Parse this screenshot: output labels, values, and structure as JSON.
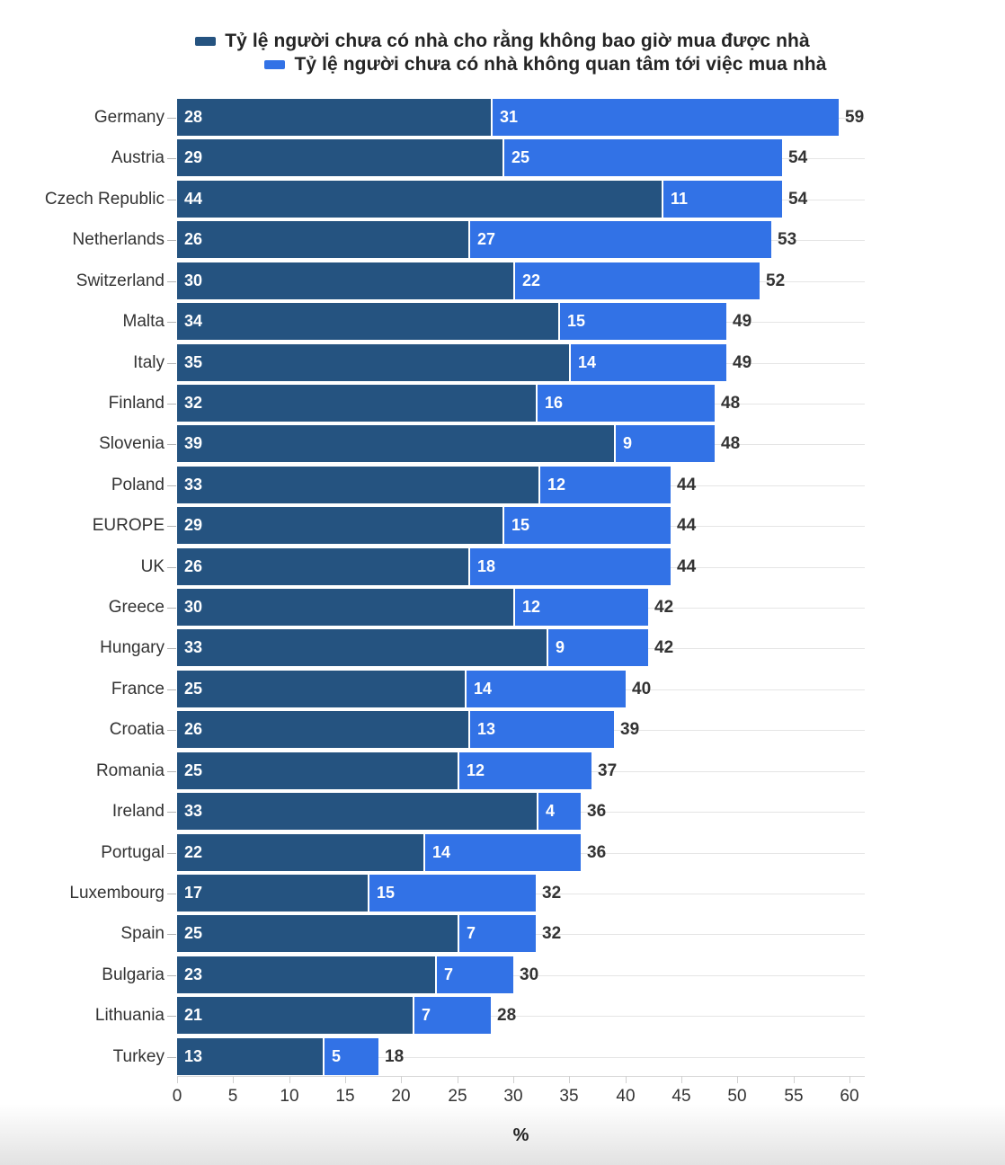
{
  "legend": {
    "items": [
      {
        "label": "Tỷ lệ người chưa có nhà cho rằng không bao giờ mua được nhà",
        "color": "#255380"
      },
      {
        "label": "Tỷ lệ người chưa có nhà không quan tâm tới việc mua nhà",
        "color": "#3272e6"
      }
    ]
  },
  "chart_data": {
    "type": "bar",
    "orientation": "horizontal",
    "stacked": true,
    "grid": true,
    "legend_position": "top-center",
    "title": "",
    "xlabel": "%",
    "ylabel": "",
    "xlim": [
      0,
      61.4
    ],
    "x_ticks": [
      0,
      5,
      10,
      15,
      20,
      25,
      30,
      35,
      40,
      45,
      50,
      55,
      60
    ],
    "categories": [
      "Germany",
      "Austria",
      "Czech Republic",
      "Netherlands",
      "Switzerland",
      "Malta",
      "Italy",
      "Finland",
      "Slovenia",
      "Poland",
      "EUROPE",
      "UK",
      "Greece",
      "Hungary",
      "France",
      "Croatia",
      "Romania",
      "Ireland",
      "Portugal",
      "Luxembourg",
      "Spain",
      "Bulgaria",
      "Lithuania",
      "Turkey"
    ],
    "series": [
      {
        "name": "Tỷ lệ người chưa có nhà cho rằng không bao giờ mua được nhà",
        "color": "#255380",
        "values": [
          28,
          29,
          44,
          26,
          30,
          34,
          35,
          32,
          39,
          33,
          29,
          26,
          30,
          33,
          25,
          26,
          25,
          33,
          22,
          17,
          25,
          23,
          21,
          13
        ]
      },
      {
        "name": "Tỷ lệ người chưa có nhà không quan tâm tới việc mua nhà",
        "color": "#3272e6",
        "values": [
          31,
          25,
          11,
          27,
          22,
          15,
          14,
          16,
          9,
          12,
          15,
          18,
          12,
          9,
          14,
          13,
          12,
          4,
          14,
          15,
          7,
          7,
          7,
          5
        ]
      }
    ],
    "totals": [
      59,
      54,
      54,
      53,
      52,
      49,
      49,
      48,
      48,
      44,
      44,
      44,
      42,
      42,
      40,
      39,
      37,
      36,
      36,
      32,
      32,
      30,
      28,
      18
    ]
  }
}
